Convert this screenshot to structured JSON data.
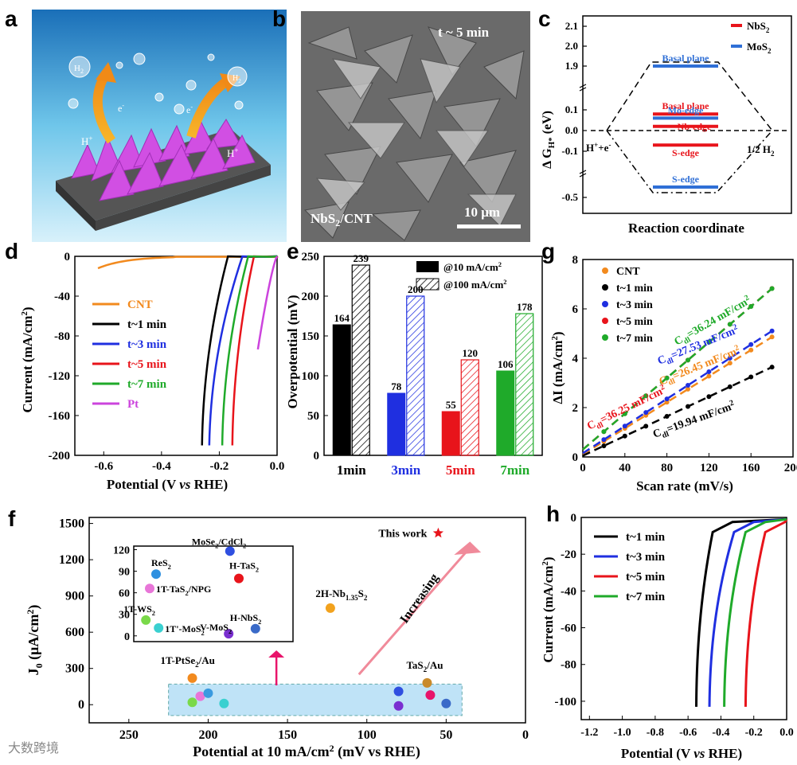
{
  "panel_labels": {
    "a": "a",
    "b": "b",
    "c": "c",
    "d": "d",
    "e": "e",
    "f": "f",
    "g": "g",
    "h": "h"
  },
  "panel_a": {
    "h2": "H",
    "h2_sub": "2",
    "electron": "e",
    "electron_sup": "-",
    "proton": "H",
    "proton_sup": "+"
  },
  "panel_b": {
    "time_label": "t ~ 5 min",
    "sample_label": "NbS",
    "sample_sub": "2",
    "sample_suffix": "/CNT",
    "scale_label": "10 μm"
  },
  "panel_c": {
    "type": "energy-diagram",
    "ylabel": "Δ G",
    "ylabel_sub": "H*",
    "ylabel_unit": " (eV)",
    "xlabel": "Reaction coordinate",
    "yticks": [
      "2.1",
      "2.0",
      "1.9",
      "0.1",
      "0.0",
      "-0.1",
      "-0.5"
    ],
    "legend": [
      {
        "name": "NbS",
        "sub": "2",
        "color": "#e8141b"
      },
      {
        "name": "MoS",
        "sub": "2",
        "color": "#2f6fd6"
      }
    ],
    "left_label": "H",
    "left_label_sup": "+",
    "left_label_suffix": "+e",
    "left_label_sup2": "-",
    "right_label": "1/2 H",
    "right_label_sub": "2",
    "levels": [
      {
        "name": "Basal plane",
        "material": "MoS2",
        "value": 1.9,
        "color": "#2f6fd6"
      },
      {
        "name": "Basal plane",
        "material": "NbS2",
        "value": 0.08,
        "color": "#e8141b"
      },
      {
        "name": "Mo-edge",
        "material": "MoS2",
        "value": 0.06,
        "color": "#2f6fd6"
      },
      {
        "name": "Nb-edge",
        "material": "NbS2",
        "value": 0.02,
        "color": "#e8141b"
      },
      {
        "name": "S-edge",
        "material": "NbS2",
        "value": -0.07,
        "color": "#e8141b"
      },
      {
        "name": "S-edge",
        "material": "MoS2",
        "value": -0.45,
        "color": "#2f6fd6"
      }
    ]
  },
  "chart_data": [
    {
      "id": "d",
      "type": "line",
      "xlabel": "Potential (V vs RHE)",
      "ylabel": "Current (mA/cm²)",
      "xlabel_parts": [
        "Potential (V ",
        "vs",
        " RHE)"
      ],
      "ylabel_main": "Current (mA/cm",
      "ylabel_sup": "2",
      "ylabel_end": ")",
      "xlim": [
        -0.7,
        0.0
      ],
      "ylim": [
        -200,
        0
      ],
      "xticks": [
        "-0.6",
        "-0.4",
        "-0.2",
        "0.0"
      ],
      "yticks": [
        "0",
        "-40",
        "-80",
        "-120",
        "-160",
        "-200"
      ],
      "series": [
        {
          "name": "CNT",
          "color": "#f28a1e",
          "onset": -0.62,
          "x200": null
        },
        {
          "name": "t~1 min",
          "color": "#000000",
          "onset": -0.17,
          "x200": -0.26
        },
        {
          "name": "t~3 min",
          "color": "#1f2fe0",
          "onset": -0.12,
          "x200": -0.235
        },
        {
          "name": "t~5 min",
          "color": "#e8141b",
          "onset": -0.08,
          "x200": -0.155
        },
        {
          "name": "t~7 min",
          "color": "#1faa2a",
          "onset": -0.1,
          "x200": -0.19
        },
        {
          "name": "Pt",
          "color": "#cc44dd",
          "onset": -0.01,
          "x200": null
        }
      ]
    },
    {
      "id": "e",
      "type": "bar",
      "xlabel": "",
      "ylabel": "Overpotential (mV)",
      "categories": [
        "1min",
        "3min",
        "5min",
        "7min"
      ],
      "category_colors": [
        "#000000",
        "#1f2fe0",
        "#e8141b",
        "#1faa2a"
      ],
      "series": [
        {
          "name": "@10 mA/cm²",
          "name_main": "@10 mA/cm",
          "values": [
            164,
            78,
            55,
            106
          ]
        },
        {
          "name": "@100 mA/cm²",
          "name_main": "@100 mA/cm",
          "values": [
            239,
            200,
            120,
            178
          ]
        }
      ],
      "ylim": [
        0,
        250
      ],
      "yticks": [
        "0",
        "50",
        "100",
        "150",
        "200",
        "250"
      ]
    },
    {
      "id": "g",
      "type": "scatter",
      "xlabel": "Scan rate (mV/s)",
      "ylabel": "ΔI (mA/cm²)",
      "ylabel_main": "ΔI (mA/cm",
      "ylabel_sup": "2",
      "ylabel_end": ")",
      "xlim": [
        0,
        200
      ],
      "ylim": [
        0,
        8
      ],
      "xticks": [
        "0",
        "40",
        "80",
        "120",
        "160",
        "200"
      ],
      "yticks": [
        "0",
        "2",
        "4",
        "6",
        "8"
      ],
      "x": [
        0,
        20,
        40,
        60,
        80,
        100,
        120,
        140,
        160,
        180
      ],
      "series": [
        {
          "name": "CNT",
          "color": "#f28a1e",
          "slope": 0.02645,
          "cdl": "C",
          "cdl_sub": "dl",
          "cdl_val": "=26.45 mF/cm",
          "cdl_sup": "2"
        },
        {
          "name": "t~1 min",
          "color": "#000000",
          "slope": 0.01994,
          "cdl": "C",
          "cdl_sub": "dl",
          "cdl_val": "=19.94 mF/cm",
          "cdl_sup": "2"
        },
        {
          "name": "t~3 min",
          "color": "#1f2fe0",
          "slope": 0.02753,
          "cdl": "C",
          "cdl_sub": "dl",
          "cdl_val": "=27.53 mF/cm",
          "cdl_sup": "2"
        },
        {
          "name": "t~5 min",
          "color": "#e8141b",
          "slope": 0.03625,
          "cdl": "C",
          "cdl_sub": "dl",
          "cdl_val": "=36.25 mF/cm",
          "cdl_sup": "2"
        },
        {
          "name": "t~7 min",
          "color": "#1faa2a",
          "slope": 0.03624,
          "cdl": "C",
          "cdl_sub": "dl",
          "cdl_val": "=36.24 mF/cm",
          "cdl_sup": "2"
        }
      ]
    },
    {
      "id": "f",
      "type": "scatter",
      "xlabel": "Potential at 10 mA/cm² (mV vs RHE)",
      "ylabel": "J₀ (μA/cm²)",
      "xlabel_main": "Potential at 10 mA/cm",
      "xlabel_sup": "2",
      "xlabel_end": " (mV vs RHE)",
      "ylabel_main": "J",
      "ylabel_sub": "0",
      "ylabel_mid": " (μA/cm",
      "ylabel_sup": "2",
      "ylabel_end": ")",
      "xlim": [
        275,
        0
      ],
      "ylim": [
        -150,
        1550
      ],
      "xticks": [
        "250",
        "200",
        "150",
        "100",
        "50",
        "0"
      ],
      "yticks": [
        "0",
        "300",
        "600",
        "900",
        "1200",
        "1500"
      ],
      "arrow_label": "Increasing",
      "main_points": [
        {
          "label": "This work",
          "x": 55,
          "y": 1420,
          "color": "#e8141b",
          "marker": "star"
        },
        {
          "label": "2H-Nb1.35S2",
          "label_main": "2H-Nb",
          "label_sub": "1.35",
          "label_mid": "S",
          "label_sub2": "2",
          "x": 123,
          "y": 800,
          "color": "#f2a21e"
        },
        {
          "label": "TaS2/Au",
          "label_main": "TaS",
          "label_sub": "2",
          "label_end": "/Au",
          "x": 62,
          "y": 180,
          "color": "#c98a2a"
        },
        {
          "label": "1T-PtSe2/Au",
          "label_main": "1T-PtSe",
          "label_sub": "2",
          "label_end": "/Au",
          "x": 210,
          "y": 220,
          "color": "#f28a1e"
        },
        {
          "x": 80,
          "y": 110,
          "color": "#2f4fe0"
        },
        {
          "x": 80,
          "y": -10,
          "color": "#7a2fd0"
        },
        {
          "x": 60,
          "y": 80,
          "color": "#e8146b"
        },
        {
          "x": 50,
          "y": 10,
          "color": "#3a6ac8"
        },
        {
          "x": 210,
          "y": 20,
          "color": "#7ad94a"
        },
        {
          "x": 205,
          "y": 70,
          "color": "#e876d8"
        },
        {
          "x": 200,
          "y": 95,
          "color": "#3a9ae0"
        },
        {
          "x": 190,
          "y": 10,
          "color": "#3ad0d0"
        }
      ],
      "inset": {
        "ylim": [
          -8,
          125
        ],
        "yticks": [
          "0",
          "30",
          "60",
          "90",
          "120"
        ],
        "points": [
          {
            "label": "MoSe2/CdCl2",
            "label_main": "MoSe",
            "label_sub": "2",
            "label_end": "/CdCl",
            "label_sub2": "2",
            "x": 0.63,
            "y": 118,
            "color": "#2f4fe0"
          },
          {
            "label": "ReS2",
            "label_main": "ReS",
            "label_sub": "2",
            "x": 0.05,
            "y": 86,
            "color": "#2f90e0"
          },
          {
            "label": "1T-TaS2/NPG",
            "label_main": "1T-TaS",
            "label_sub": "2",
            "label_end": "/NPG",
            "x": 0.0,
            "y": 66,
            "color": "#e876d8"
          },
          {
            "label": "H-TaS2",
            "label_main": "H-TaS",
            "label_sub": "2",
            "x": 0.7,
            "y": 80,
            "color": "#e8141b"
          },
          {
            "label": "1T-WS2",
            "label_main": "1T-WS",
            "label_sub": "2",
            "x": -0.03,
            "y": 22,
            "color": "#7ad94a"
          },
          {
            "label": "1T'-MoS2",
            "label_main": "1T'-MoS",
            "label_sub": "2",
            "x": 0.07,
            "y": 11,
            "color": "#3ad0d0"
          },
          {
            "label": "H-NbS2",
            "label_main": "H-NbS",
            "label_sub": "2",
            "x": 0.83,
            "y": 10,
            "color": "#3a6ac8"
          },
          {
            "label": "V-MoS2",
            "label_main": "V-MoS",
            "label_sub": "2",
            "x": 0.62,
            "y": 3,
            "color": "#7a2fd0"
          }
        ]
      }
    },
    {
      "id": "h",
      "type": "line",
      "xlabel": "Potential (V vs RHE)",
      "ylabel": "Current (mA/cm²)",
      "xlabel_parts": [
        "Potential (V ",
        "vs",
        " RHE)"
      ],
      "ylabel_main": "Current (mA/cm",
      "ylabel_sup": "2",
      "ylabel_end": ")",
      "xlim": [
        -1.25,
        0.0
      ],
      "ylim": [
        -110,
        0
      ],
      "xticks": [
        "-1.2",
        "-1.0",
        "-0.8",
        "-0.6",
        "-0.4",
        "-0.2",
        "0.0"
      ],
      "yticks": [
        "0",
        "-20",
        "-40",
        "-60",
        "-80",
        "-100"
      ],
      "series": [
        {
          "name": "t~1 min",
          "color": "#000000",
          "onset": -0.45,
          "xend": -0.55
        },
        {
          "name": "t~3 min",
          "color": "#1f2fe0",
          "onset": -0.32,
          "xend": -0.47
        },
        {
          "name": "t~5 min",
          "color": "#e8141b",
          "onset": -0.13,
          "xend": -0.25
        },
        {
          "name": "t~7 min",
          "color": "#1faa2a",
          "onset": -0.25,
          "xend": -0.38
        }
      ]
    }
  ],
  "watermark": "大数跨境"
}
